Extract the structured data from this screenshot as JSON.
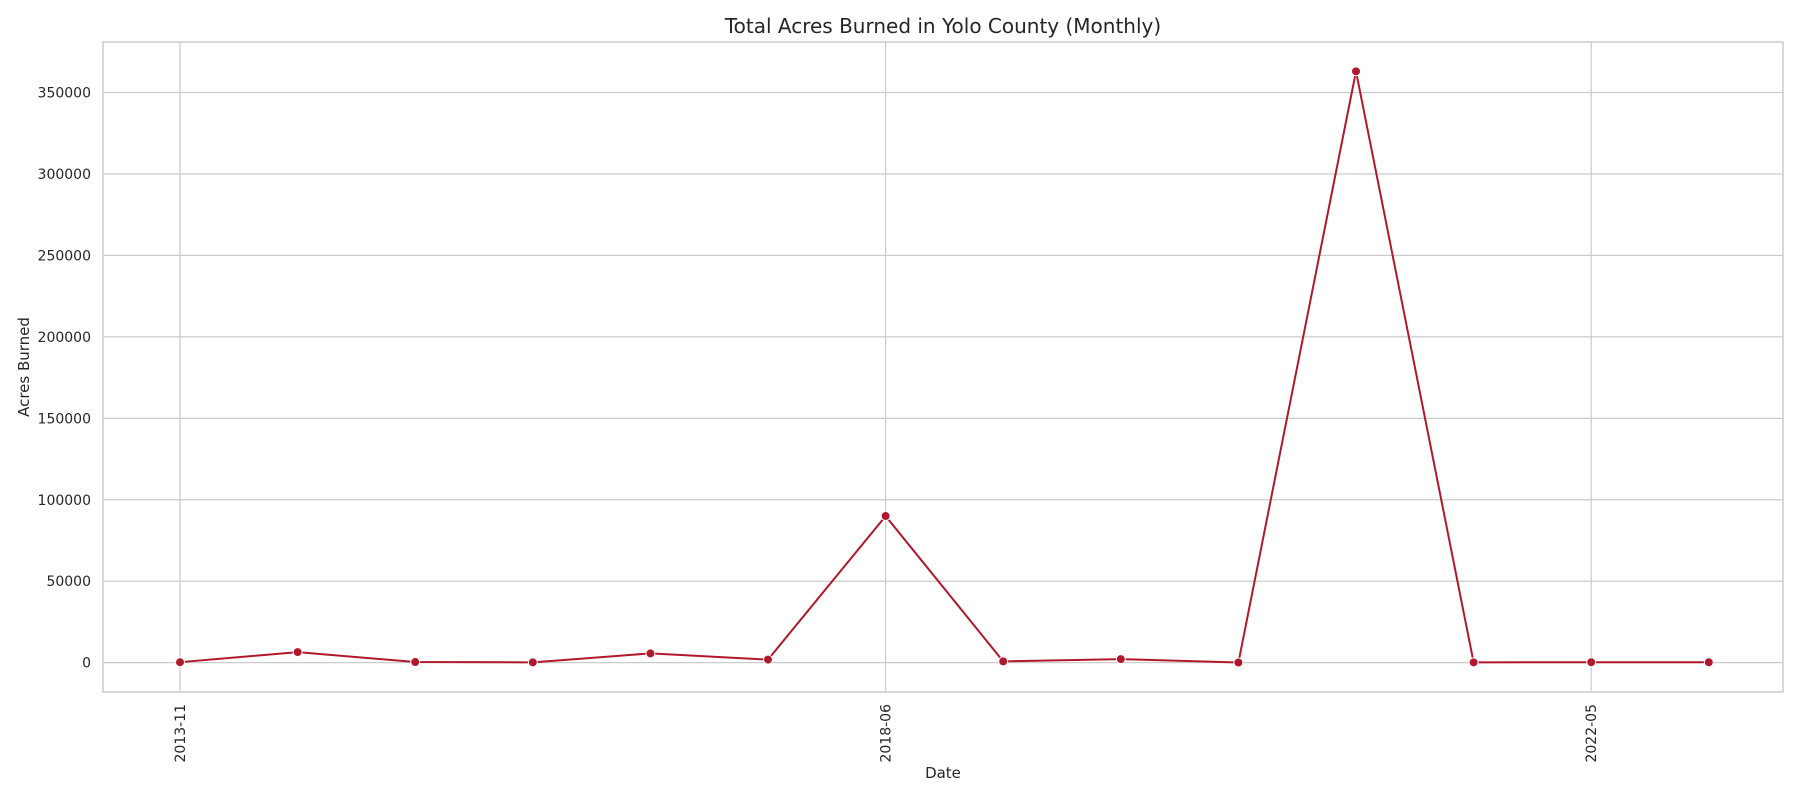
{
  "chart_data": {
    "type": "line",
    "title": "Total Acres Burned in Yolo County (Monthly)",
    "xlabel": "Date",
    "ylabel": "Acres Burned",
    "x_tick_labels": [
      "2013-11",
      "2018-06",
      "2022-05"
    ],
    "y_tick_labels": [
      "0",
      "50000",
      "100000",
      "150000",
      "200000",
      "250000",
      "300000",
      "350000"
    ],
    "y_ticks": [
      0,
      50000,
      100000,
      150000,
      200000,
      250000,
      300000,
      350000
    ],
    "ylim": [
      -18000,
      381000
    ],
    "grid": true,
    "series": [
      {
        "color": "#b2182b",
        "values": [
          300,
          6500,
          400,
          200,
          5700,
          1900,
          90000,
          800,
          2200,
          100,
          363000,
          200,
          300,
          250
        ]
      }
    ]
  }
}
